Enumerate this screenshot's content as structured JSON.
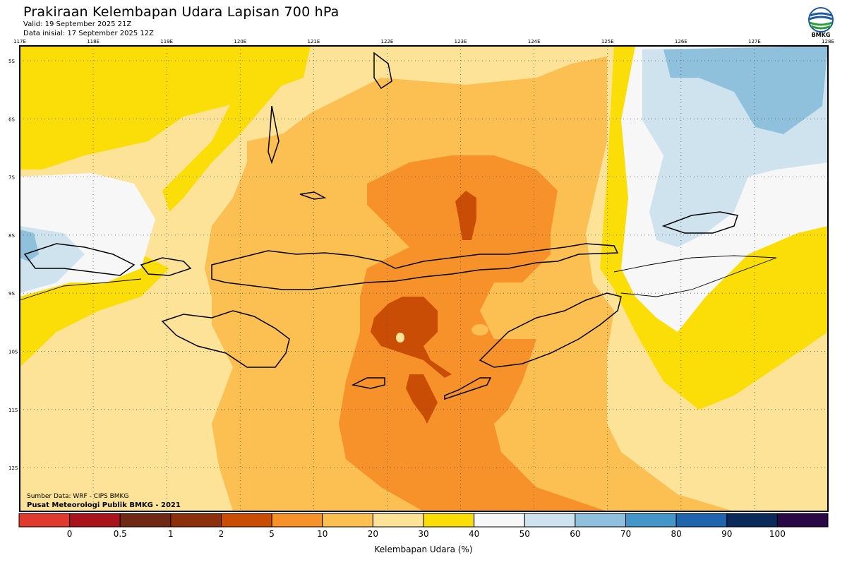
{
  "title": "Prakiraan Kelembapan Udara Lapisan 700 hPa",
  "valid": "Valid: 19 September 2025 21Z",
  "initial": "Data inisial: 17 September 2025 12Z",
  "logo": {
    "text": "BMKG",
    "icon": "bmkg-logo-icon"
  },
  "lon_labels": [
    "117E",
    "118E",
    "119E",
    "120E",
    "121E",
    "122E",
    "123E",
    "124E",
    "125E",
    "126E",
    "127E",
    "128E"
  ],
  "lat_labels": [
    "5S",
    "6S",
    "7S",
    "8S",
    "9S",
    "10S",
    "11S",
    "12S"
  ],
  "credits": {
    "source": "Sumber Data: WRF - CIPS BMKG",
    "org": "Pusat Meteorologi Publik BMKG - 2021"
  },
  "legend": {
    "title": "Kelembapan Udara (%)",
    "tick_labels": [
      "0",
      "0.5",
      "1",
      "2",
      "5",
      "10",
      "20",
      "30",
      "40",
      "50",
      "60",
      "70",
      "80",
      "90",
      "100"
    ],
    "colors": [
      "#e03a2e",
      "#a8141b",
      "#6e2813",
      "#8c300b",
      "#c94d05",
      "#f7922a",
      "#fbbf52",
      "#fde397",
      "#fbde07",
      "#f7f7f7",
      "#cfe3ef",
      "#8fc1dd",
      "#4496c8",
      "#2064ad",
      "#0b2a5a",
      "#2a0847"
    ]
  },
  "humidity_classes": {
    "very_dry": "#c94d05",
    "dry": "#f7922a",
    "moderate": "#fbbf52",
    "light": "#fde397",
    "yellow": "#fbde07",
    "white": "#f7f7f7",
    "pale_blue": "#cfe3ef",
    "blue": "#8fc1dd",
    "deep": "#4496c8"
  }
}
